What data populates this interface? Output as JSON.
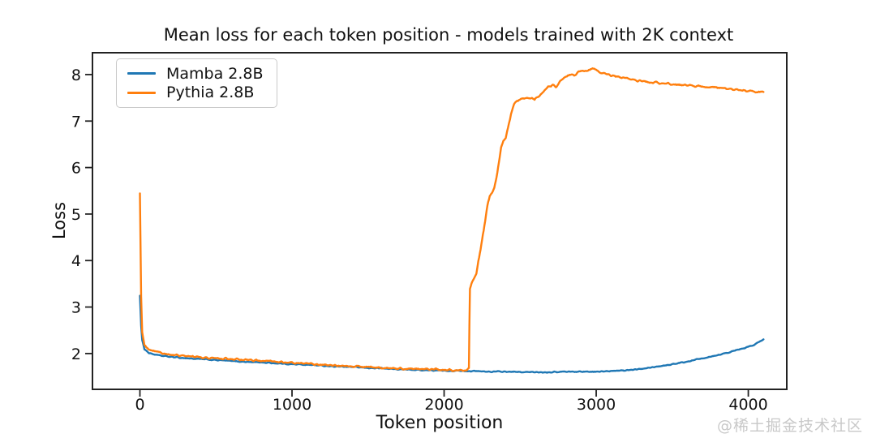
{
  "page": {
    "background": "#ffffff",
    "watermark": "@稀土掘金技术社区"
  },
  "chart_data": {
    "type": "line",
    "title": "Mean loss for each token position - models trained with 2K context",
    "xlabel": "Token position",
    "ylabel": "Loss",
    "xlim": [
      -312,
      4253
    ],
    "ylim": [
      1.23,
      8.47
    ],
    "x_ticks": [
      0,
      1000,
      2000,
      3000,
      4000
    ],
    "y_ticks": [
      2,
      3,
      4,
      5,
      6,
      7,
      8
    ],
    "grid": false,
    "frame": true,
    "legend_position": "upper left",
    "axis_color": "#222222",
    "text_color": "#111111",
    "series": [
      {
        "name": "Mamba 2.8B",
        "color": "#1f77b4",
        "noise": 0.016,
        "points": [
          [
            0,
            3.25
          ],
          [
            8,
            2.6
          ],
          [
            15,
            2.28
          ],
          [
            30,
            2.1
          ],
          [
            60,
            2.01
          ],
          [
            120,
            1.96
          ],
          [
            200,
            1.93
          ],
          [
            300,
            1.9
          ],
          [
            400,
            1.88
          ],
          [
            500,
            1.86
          ],
          [
            600,
            1.84
          ],
          [
            700,
            1.82
          ],
          [
            800,
            1.81
          ],
          [
            900,
            1.79
          ],
          [
            1000,
            1.77
          ],
          [
            1100,
            1.76
          ],
          [
            1200,
            1.74
          ],
          [
            1300,
            1.72
          ],
          [
            1400,
            1.71
          ],
          [
            1500,
            1.69
          ],
          [
            1600,
            1.68
          ],
          [
            1700,
            1.66
          ],
          [
            1800,
            1.65
          ],
          [
            1900,
            1.64
          ],
          [
            2000,
            1.63
          ],
          [
            2100,
            1.63
          ],
          [
            2200,
            1.62
          ],
          [
            2300,
            1.61
          ],
          [
            2400,
            1.61
          ],
          [
            2500,
            1.6
          ],
          [
            2600,
            1.6
          ],
          [
            2700,
            1.6
          ],
          [
            2800,
            1.61
          ],
          [
            2900,
            1.61
          ],
          [
            3000,
            1.61
          ],
          [
            3100,
            1.62
          ],
          [
            3200,
            1.64
          ],
          [
            3300,
            1.68
          ],
          [
            3400,
            1.72
          ],
          [
            3500,
            1.77
          ],
          [
            3600,
            1.83
          ],
          [
            3700,
            1.9
          ],
          [
            3800,
            1.97
          ],
          [
            3900,
            2.05
          ],
          [
            4000,
            2.14
          ],
          [
            4050,
            2.21
          ],
          [
            4100,
            2.3
          ]
        ]
      },
      {
        "name": "Pythia 2.8B",
        "color": "#ff7f0e",
        "noise": 0.028,
        "points": [
          [
            0,
            5.42
          ],
          [
            8,
            3.2
          ],
          [
            15,
            2.45
          ],
          [
            30,
            2.18
          ],
          [
            60,
            2.08
          ],
          [
            120,
            2.02
          ],
          [
            200,
            1.98
          ],
          [
            300,
            1.95
          ],
          [
            400,
            1.92
          ],
          [
            500,
            1.9
          ],
          [
            600,
            1.88
          ],
          [
            700,
            1.86
          ],
          [
            800,
            1.84
          ],
          [
            900,
            1.82
          ],
          [
            1000,
            1.8
          ],
          [
            1100,
            1.78
          ],
          [
            1200,
            1.76
          ],
          [
            1300,
            1.74
          ],
          [
            1400,
            1.72
          ],
          [
            1500,
            1.71
          ],
          [
            1600,
            1.69
          ],
          [
            1700,
            1.68
          ],
          [
            1800,
            1.67
          ],
          [
            1900,
            1.66
          ],
          [
            2000,
            1.65
          ],
          [
            2100,
            1.64
          ],
          [
            2150,
            1.65
          ],
          [
            2163,
            1.68
          ],
          [
            2166,
            2.6
          ],
          [
            2170,
            3.4
          ],
          [
            2185,
            3.55
          ],
          [
            2200,
            3.62
          ],
          [
            2212,
            3.72
          ],
          [
            2225,
            4.0
          ],
          [
            2240,
            4.25
          ],
          [
            2255,
            4.55
          ],
          [
            2270,
            4.85
          ],
          [
            2285,
            5.2
          ],
          [
            2300,
            5.38
          ],
          [
            2315,
            5.46
          ],
          [
            2330,
            5.55
          ],
          [
            2345,
            5.8
          ],
          [
            2360,
            6.1
          ],
          [
            2375,
            6.45
          ],
          [
            2390,
            6.57
          ],
          [
            2405,
            6.62
          ],
          [
            2420,
            6.85
          ],
          [
            2440,
            7.15
          ],
          [
            2460,
            7.35
          ],
          [
            2480,
            7.44
          ],
          [
            2520,
            7.48
          ],
          [
            2560,
            7.5
          ],
          [
            2595,
            7.46
          ],
          [
            2630,
            7.56
          ],
          [
            2660,
            7.66
          ],
          [
            2690,
            7.74
          ],
          [
            2715,
            7.78
          ],
          [
            2735,
            7.72
          ],
          [
            2765,
            7.85
          ],
          [
            2795,
            7.95
          ],
          [
            2825,
            8.0
          ],
          [
            2855,
            7.97
          ],
          [
            2885,
            8.05
          ],
          [
            2915,
            8.09
          ],
          [
            2940,
            8.08
          ],
          [
            2970,
            8.12
          ],
          [
            3000,
            8.1
          ],
          [
            3040,
            8.04
          ],
          [
            3080,
            8.0
          ],
          [
            3150,
            7.95
          ],
          [
            3250,
            7.88
          ],
          [
            3350,
            7.84
          ],
          [
            3450,
            7.81
          ],
          [
            3550,
            7.78
          ],
          [
            3650,
            7.76
          ],
          [
            3750,
            7.73
          ],
          [
            3850,
            7.7
          ],
          [
            3950,
            7.67
          ],
          [
            4050,
            7.64
          ],
          [
            4100,
            7.62
          ]
        ]
      }
    ]
  }
}
